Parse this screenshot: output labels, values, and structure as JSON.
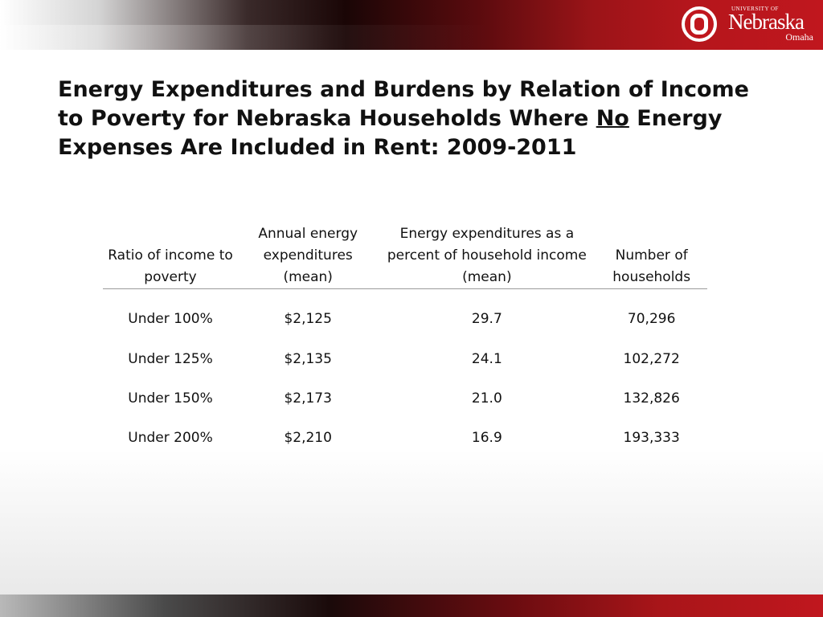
{
  "header": {
    "logo": {
      "university_prefix": "UNIVERSITY OF",
      "name": "Nebraska",
      "campus": "Omaha",
      "icon": "uno-o-logo-icon",
      "brand_color": "#c0171e"
    }
  },
  "slide": {
    "title_part1": "Energy Expenditures and Burdens by Relation of Income to Poverty for Nebraska Households Where ",
    "title_emphasis": "No",
    "title_part2": " Energy Expenses Are Included in Rent: 2009-2011"
  },
  "table": {
    "headers": [
      "Ratio of income to poverty",
      "Annual energy expenditures (mean)",
      "Energy expenditures as a percent of household income (mean)",
      "Number of households"
    ],
    "rows": [
      [
        "Under 100%",
        "$2,125",
        "29.7",
        "70,296"
      ],
      [
        "Under 125%",
        "$2,135",
        "24.1",
        "102,272"
      ],
      [
        "Under 150%",
        "$2,173",
        "21.0",
        "132,826"
      ],
      [
        "Under 200%",
        "$2,210",
        "16.9",
        "193,333"
      ]
    ]
  }
}
